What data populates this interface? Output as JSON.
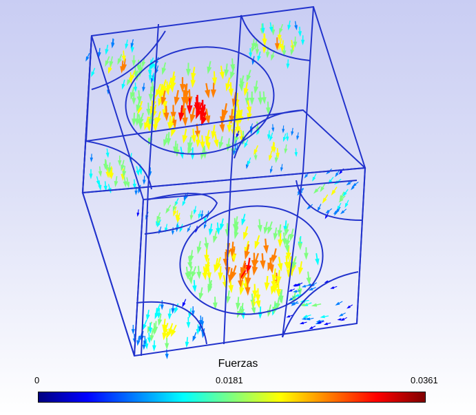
{
  "legend": {
    "title": "Fuerzas",
    "min_label": "0",
    "mid_label": "0.0181",
    "max_label": "0.0361",
    "colormap": [
      "#00007f",
      "#0000ff",
      "#007fff",
      "#00ffff",
      "#7fff7f",
      "#ffff00",
      "#ff7f00",
      "#ff0000",
      "#7f0000"
    ]
  },
  "scene": {
    "wire_color": "#2233cc"
  }
}
